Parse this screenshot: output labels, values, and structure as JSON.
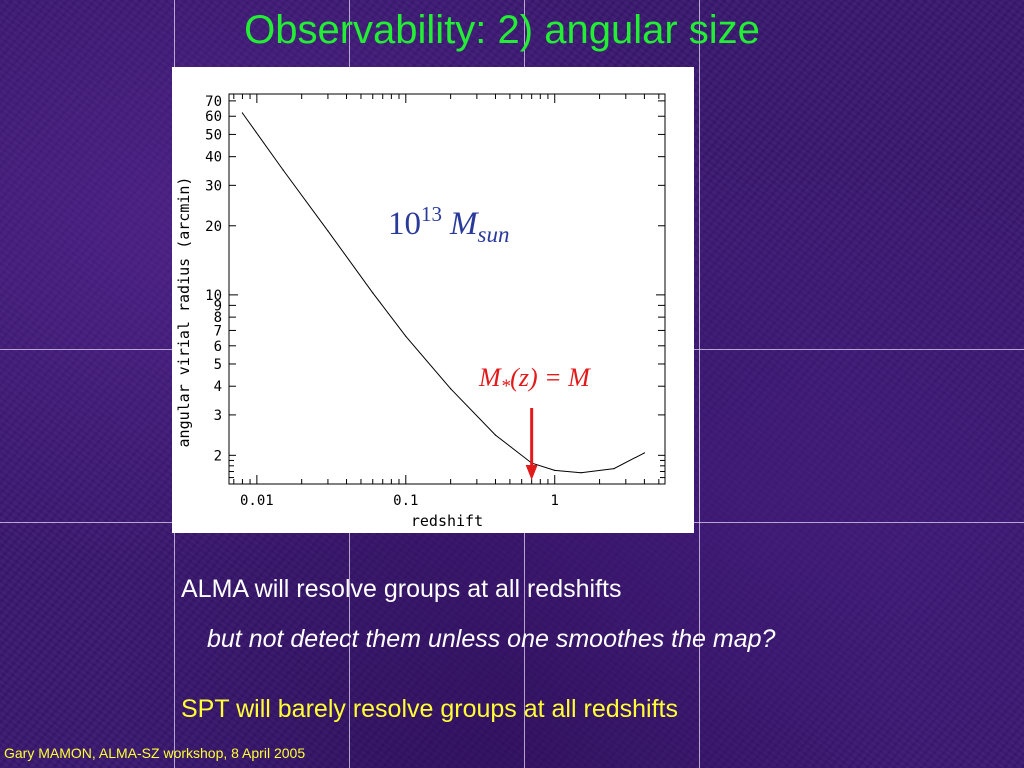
{
  "slide": {
    "title": "Observability: 2) angular size",
    "bullets": [
      "ALMA will resolve groups at all redshifts",
      "but not detect them unless one smoothes the map?",
      "SPT will barely resolve groups at all redshifts"
    ],
    "footer": "Gary MAMON, ALMA-SZ workshop, 8 April 2005"
  },
  "colors": {
    "title": "#22ee33",
    "bullet": "#ffffff",
    "highlight": "#ffff33",
    "annotation_mass": "#2a3a9a",
    "annotation_arrow": "#e21a1a"
  },
  "chart_data": {
    "type": "line",
    "xlabel": "redshift",
    "ylabel": "angular virial radius  (arcmin)",
    "xscale": "log",
    "yscale": "log",
    "xlim": [
      0.0065,
      5.5
    ],
    "ylim": [
      1.5,
      75
    ],
    "x_ticks": [
      "0.01",
      "0.1",
      "1"
    ],
    "y_ticks": [
      "2",
      "3",
      "4",
      "5",
      "6",
      "7",
      "8",
      "9",
      "10",
      "20",
      "30",
      "40",
      "50",
      "60",
      "70"
    ],
    "series": [
      {
        "x": [
          0.008,
          0.015,
          0.03,
          0.06,
          0.1,
          0.2,
          0.4,
          0.7,
          1.0,
          1.5,
          2.5,
          4.0
        ],
        "y": [
          62,
          35,
          19,
          10.2,
          6.6,
          3.9,
          2.45,
          1.85,
          1.72,
          1.68,
          1.75,
          2.05
        ]
      }
    ],
    "annotations": {
      "mass_label": {
        "base": "10",
        "exponent": "13",
        "symbol": "M",
        "subscript": "sun"
      },
      "mstar_label": {
        "text_before": "M",
        "star": "*",
        "text_after": "(z) = M"
      },
      "arrow_redshift": 0.7
    }
  }
}
